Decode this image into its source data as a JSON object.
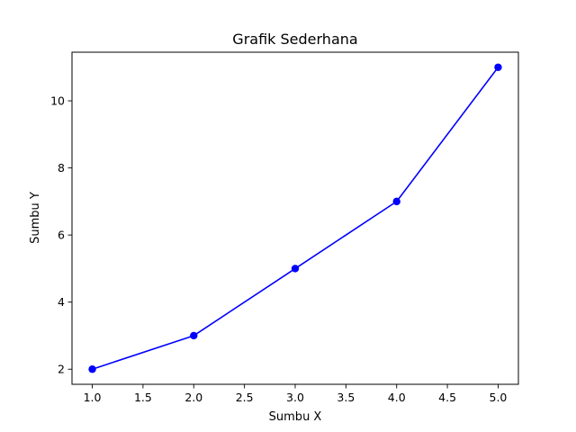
{
  "chart_data": {
    "type": "line",
    "title": "Grafik Sederhana",
    "xlabel": "Sumbu X",
    "ylabel": "Sumbu Y",
    "x": [
      1,
      2,
      3,
      4,
      5
    ],
    "series": [
      {
        "values": [
          2,
          3,
          5,
          7,
          11
        ],
        "color": "#0000ff",
        "marker": "circle"
      }
    ],
    "xlim": [
      0.8,
      5.2
    ],
    "ylim": [
      1.55,
      11.45
    ],
    "xticks": [
      1.0,
      1.5,
      2.0,
      2.5,
      3.0,
      3.5,
      4.0,
      4.5,
      5.0
    ],
    "xtick_labels": [
      "1.0",
      "1.5",
      "2.0",
      "2.5",
      "3.0",
      "3.5",
      "4.0",
      "4.5",
      "5.0"
    ],
    "yticks": [
      2,
      4,
      6,
      8,
      10
    ],
    "ytick_labels": [
      "2",
      "4",
      "6",
      "8",
      "10"
    ],
    "grid": false,
    "legend": "none"
  }
}
